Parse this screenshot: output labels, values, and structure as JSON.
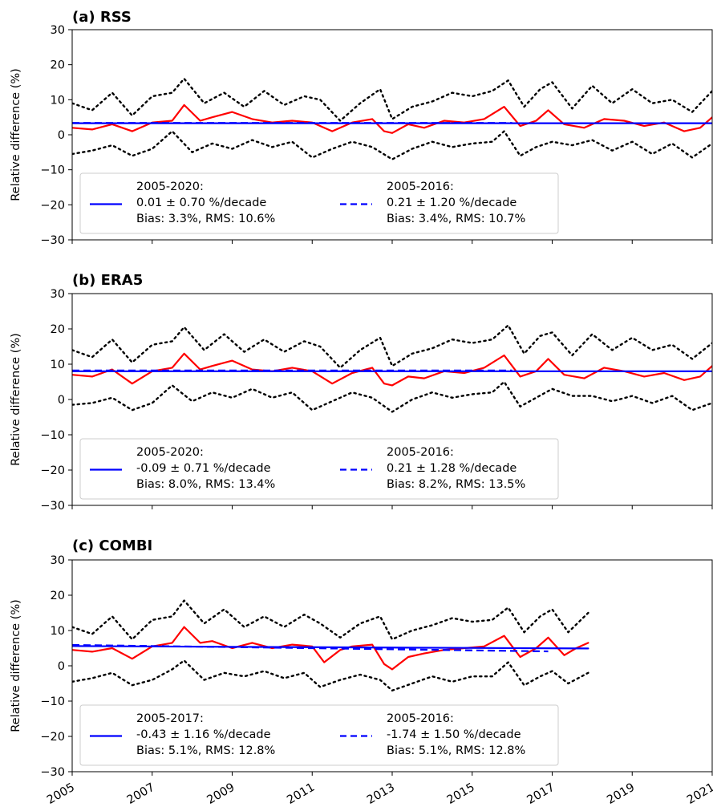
{
  "figure": {
    "x_ticks": [
      "2005",
      "2007",
      "2009",
      "2011",
      "2013",
      "2015",
      "2017",
      "2019",
      "2021"
    ],
    "colors": {
      "series": "#ff0000",
      "trend": "#0000ff",
      "envelope": "#000000"
    }
  },
  "chart_data": [
    {
      "type": "line",
      "title": "(a) RSS",
      "ylabel": "Relative difference (%)",
      "xlabel": "",
      "xlim": [
        2005,
        2021
      ],
      "ylim": [
        -30,
        30
      ],
      "y_ticks": [
        "30",
        "20",
        "10",
        "0",
        "−10",
        "−20",
        "−30"
      ],
      "grid": false,
      "legend_position": "lower-left",
      "series": [
        {
          "x": [
            2005.0,
            2005.5,
            2006.0,
            2006.5,
            2007.0,
            2007.5,
            2007.8,
            2008.2,
            2008.5,
            2009.0,
            2009.5,
            2010.0,
            2010.5,
            2011.0,
            2011.5,
            2012.0,
            2012.5,
            2012.8,
            2013.0,
            2013.4,
            2013.8,
            2014.3,
            2014.8,
            2015.3,
            2015.8,
            2016.2,
            2016.6,
            2016.9,
            2017.3,
            2017.8,
            2018.3,
            2018.8,
            2019.3,
            2019.8,
            2020.3,
            2020.7,
            2021.0
          ],
          "y": [
            2.0,
            1.5,
            3.0,
            1.0,
            3.5,
            4.0,
            8.5,
            4.0,
            5.0,
            6.5,
            4.5,
            3.5,
            4.0,
            3.5,
            1.0,
            3.5,
            4.5,
            1.0,
            0.5,
            3.0,
            2.0,
            4.0,
            3.5,
            4.5,
            8.0,
            2.5,
            4.0,
            7.0,
            3.0,
            2.0,
            4.5,
            4.0,
            2.5,
            3.5,
            1.0,
            2.0,
            5.0
          ]
        },
        {
          "x": [
            2005.0,
            2005.5,
            2006.0,
            2006.5,
            2007.0,
            2007.5,
            2007.8,
            2008.3,
            2008.8,
            2009.3,
            2009.8,
            2010.3,
            2010.8,
            2011.2,
            2011.7,
            2012.2,
            2012.7,
            2013.0,
            2013.5,
            2014.0,
            2014.5,
            2015.0,
            2015.5,
            2015.9,
            2016.3,
            2016.7,
            2017.0,
            2017.5,
            2018.0,
            2018.5,
            2019.0,
            2019.5,
            2020.0,
            2020.5,
            2021.0
          ],
          "y": [
            9.0,
            7.0,
            12.0,
            5.5,
            11.0,
            12.0,
            16.0,
            9.0,
            12.0,
            8.0,
            12.5,
            8.5,
            11.0,
            10.0,
            4.0,
            9.0,
            13.0,
            4.5,
            8.0,
            9.5,
            12.0,
            11.0,
            12.5,
            15.5,
            8.0,
            13.0,
            15.0,
            7.5,
            14.0,
            9.0,
            13.0,
            9.0,
            10.0,
            6.5,
            12.5
          ]
        },
        {
          "x": [
            2005.0,
            2005.5,
            2006.0,
            2006.5,
            2007.0,
            2007.5,
            2008.0,
            2008.5,
            2009.0,
            2009.5,
            2010.0,
            2010.5,
            2011.0,
            2011.5,
            2012.0,
            2012.5,
            2013.0,
            2013.5,
            2014.0,
            2014.5,
            2015.0,
            2015.5,
            2015.8,
            2016.2,
            2016.6,
            2017.0,
            2017.5,
            2018.0,
            2018.5,
            2019.0,
            2019.5,
            2020.0,
            2020.5,
            2021.0
          ],
          "y": [
            -5.5,
            -4.5,
            -3.0,
            -6.0,
            -4.0,
            1.0,
            -5.0,
            -2.5,
            -4.0,
            -1.5,
            -3.5,
            -2.0,
            -6.5,
            -4.0,
            -2.0,
            -3.5,
            -7.0,
            -4.0,
            -2.0,
            -3.5,
            -2.5,
            -2.0,
            1.0,
            -6.0,
            -3.5,
            -2.0,
            -3.0,
            -1.5,
            -4.5,
            -2.0,
            -5.5,
            -2.5,
            -6.5,
            -2.5
          ]
        },
        {
          "x": [
            2005,
            2021
          ],
          "y": [
            3.3,
            3.3
          ]
        },
        {
          "x": [
            2005,
            2016
          ],
          "y": [
            3.4,
            3.4
          ]
        }
      ],
      "legend": [
        {
          "line1": "2005-2020:",
          "line2": "0.01 ± 0.70 %/decade",
          "line3": "Bias: 3.3%, RMS: 10.6%"
        },
        {
          "line1": "2005-2016:",
          "line2": "0.21 ± 1.20 %/decade",
          "line3": "Bias: 3.4%, RMS: 10.7%"
        }
      ]
    },
    {
      "type": "line",
      "title": "(b) ERA5",
      "ylabel": "Relative difference (%)",
      "xlabel": "",
      "xlim": [
        2005,
        2021
      ],
      "ylim": [
        -30,
        30
      ],
      "y_ticks": [
        "30",
        "20",
        "10",
        "0",
        "−10",
        "−20",
        "−30"
      ],
      "grid": false,
      "legend_position": "lower-left",
      "series": [
        {
          "x": [
            2005.0,
            2005.5,
            2006.0,
            2006.5,
            2007.0,
            2007.5,
            2007.8,
            2008.2,
            2008.5,
            2009.0,
            2009.5,
            2010.0,
            2010.5,
            2011.0,
            2011.5,
            2012.0,
            2012.5,
            2012.8,
            2013.0,
            2013.4,
            2013.8,
            2014.3,
            2014.8,
            2015.3,
            2015.8,
            2016.2,
            2016.6,
            2016.9,
            2017.3,
            2017.8,
            2018.3,
            2018.8,
            2019.3,
            2019.8,
            2020.3,
            2020.7,
            2021.0
          ],
          "y": [
            7.0,
            6.5,
            8.5,
            4.5,
            8.0,
            9.0,
            13.0,
            8.5,
            9.5,
            11.0,
            8.5,
            8.0,
            9.0,
            8.0,
            4.5,
            7.5,
            9.0,
            4.5,
            4.0,
            6.5,
            6.0,
            8.0,
            7.5,
            9.0,
            12.5,
            6.5,
            8.0,
            11.5,
            7.0,
            6.0,
            9.0,
            8.0,
            6.5,
            7.5,
            5.5,
            6.5,
            9.5
          ]
        },
        {
          "x": [
            2005.0,
            2005.5,
            2006.0,
            2006.5,
            2007.0,
            2007.5,
            2007.8,
            2008.3,
            2008.8,
            2009.3,
            2009.8,
            2010.3,
            2010.8,
            2011.2,
            2011.7,
            2012.2,
            2012.7,
            2013.0,
            2013.5,
            2014.0,
            2014.5,
            2015.0,
            2015.5,
            2015.9,
            2016.3,
            2016.7,
            2017.0,
            2017.5,
            2018.0,
            2018.5,
            2019.0,
            2019.5,
            2020.0,
            2020.5,
            2021.0
          ],
          "y": [
            14.0,
            12.0,
            17.0,
            10.5,
            15.5,
            16.5,
            20.5,
            14.0,
            18.5,
            13.5,
            17.0,
            13.5,
            16.5,
            15.0,
            9.0,
            14.0,
            17.5,
            9.5,
            13.0,
            14.5,
            17.0,
            16.0,
            17.0,
            21.0,
            13.0,
            18.0,
            19.0,
            12.5,
            18.5,
            14.0,
            17.5,
            14.0,
            15.5,
            11.5,
            16.0
          ]
        },
        {
          "x": [
            2005.0,
            2005.5,
            2006.0,
            2006.5,
            2007.0,
            2007.5,
            2008.0,
            2008.5,
            2009.0,
            2009.5,
            2010.0,
            2010.5,
            2011.0,
            2011.5,
            2012.0,
            2012.5,
            2013.0,
            2013.5,
            2014.0,
            2014.5,
            2015.0,
            2015.5,
            2015.8,
            2016.2,
            2016.6,
            2017.0,
            2017.5,
            2018.0,
            2018.5,
            2019.0,
            2019.5,
            2020.0,
            2020.5,
            2021.0
          ],
          "y": [
            -1.5,
            -1.0,
            0.5,
            -3.0,
            -1.0,
            4.0,
            -0.5,
            2.0,
            0.5,
            3.0,
            0.5,
            2.0,
            -3.0,
            -0.5,
            2.0,
            0.5,
            -3.5,
            0.0,
            2.0,
            0.5,
            1.5,
            2.0,
            5.0,
            -2.0,
            0.5,
            3.0,
            1.0,
            1.0,
            -0.5,
            1.0,
            -1.0,
            1.0,
            -3.0,
            -1.0
          ]
        },
        {
          "x": [
            2005,
            2021
          ],
          "y": [
            8.0,
            8.0
          ]
        },
        {
          "x": [
            2005,
            2016
          ],
          "y": [
            8.2,
            8.2
          ]
        }
      ],
      "legend": [
        {
          "line1": "2005-2020:",
          "line2": "-0.09 ± 0.71 %/decade",
          "line3": "Bias: 8.0%, RMS: 13.4%"
        },
        {
          "line1": "2005-2016:",
          "line2": "0.21 ± 1.28 %/decade",
          "line3": "Bias: 8.2%, RMS: 13.5%"
        }
      ]
    },
    {
      "type": "line",
      "title": "(c) COMBI",
      "ylabel": "Relative difference (%)",
      "xlabel": "",
      "xlim": [
        2005,
        2021
      ],
      "ylim": [
        -30,
        30
      ],
      "y_ticks": [
        "30",
        "20",
        "10",
        "0",
        "−10",
        "−20",
        "−30"
      ],
      "grid": false,
      "legend_position": "lower-left",
      "series": [
        {
          "x": [
            2005.0,
            2005.5,
            2006.0,
            2006.5,
            2007.0,
            2007.5,
            2007.8,
            2008.2,
            2008.5,
            2009.0,
            2009.5,
            2010.0,
            2010.5,
            2011.0,
            2011.3,
            2011.7,
            2012.0,
            2012.5,
            2012.8,
            2013.0,
            2013.4,
            2013.8,
            2014.3,
            2014.8,
            2015.3,
            2015.8,
            2016.2,
            2016.6,
            2016.9,
            2017.3,
            2017.6,
            2017.9
          ],
          "y": [
            4.5,
            4.0,
            5.0,
            2.0,
            5.5,
            6.5,
            11.0,
            6.5,
            7.0,
            5.0,
            6.5,
            5.0,
            6.0,
            5.5,
            1.0,
            4.5,
            5.5,
            6.0,
            0.5,
            -1.0,
            2.5,
            3.5,
            4.5,
            5.0,
            5.5,
            8.5,
            2.5,
            5.0,
            8.0,
            3.0,
            5.0,
            6.5
          ]
        },
        {
          "x": [
            2005.0,
            2005.5,
            2006.0,
            2006.5,
            2007.0,
            2007.5,
            2007.8,
            2008.3,
            2008.8,
            2009.3,
            2009.8,
            2010.3,
            2010.8,
            2011.2,
            2011.7,
            2012.2,
            2012.7,
            2013.0,
            2013.5,
            2014.0,
            2014.5,
            2015.0,
            2015.5,
            2015.9,
            2016.3,
            2016.7,
            2017.0,
            2017.4,
            2017.9
          ],
          "y": [
            11.0,
            9.0,
            14.0,
            7.5,
            13.0,
            14.0,
            18.5,
            12.0,
            16.0,
            11.0,
            14.0,
            11.0,
            14.5,
            12.0,
            8.0,
            12.0,
            14.0,
            7.5,
            10.0,
            11.5,
            13.5,
            12.5,
            13.0,
            16.5,
            9.5,
            14.0,
            16.0,
            9.5,
            15.0
          ]
        },
        {
          "x": [
            2005.0,
            2005.5,
            2006.0,
            2006.5,
            2007.0,
            2007.5,
            2007.8,
            2008.3,
            2008.8,
            2009.3,
            2009.8,
            2010.3,
            2010.8,
            2011.2,
            2011.7,
            2012.2,
            2012.7,
            2013.0,
            2013.5,
            2014.0,
            2014.5,
            2015.0,
            2015.5,
            2015.9,
            2016.3,
            2016.7,
            2017.0,
            2017.4,
            2017.9
          ],
          "y": [
            -4.5,
            -3.5,
            -2.0,
            -5.5,
            -4.0,
            -1.0,
            1.5,
            -4.0,
            -2.0,
            -3.0,
            -1.5,
            -3.5,
            -2.0,
            -6.0,
            -4.0,
            -2.5,
            -4.0,
            -7.0,
            -5.0,
            -3.0,
            -4.5,
            -3.0,
            -3.0,
            1.0,
            -5.5,
            -3.0,
            -1.5,
            -5.0,
            -2.0
          ]
        },
        {
          "x": [
            2005,
            2017.9
          ],
          "y": [
            5.6,
            4.9
          ]
        },
        {
          "x": [
            2005,
            2016.9
          ],
          "y": [
            5.9,
            4.1
          ]
        }
      ],
      "legend": [
        {
          "line1": "2005-2017:",
          "line2": "-0.43 ± 1.16 %/decade",
          "line3": "Bias: 5.1%, RMS: 12.8%"
        },
        {
          "line1": "2005-2016:",
          "line2": "-1.74 ± 1.50 %/decade",
          "line3": "Bias: 5.1%, RMS: 12.8%"
        }
      ]
    }
  ]
}
